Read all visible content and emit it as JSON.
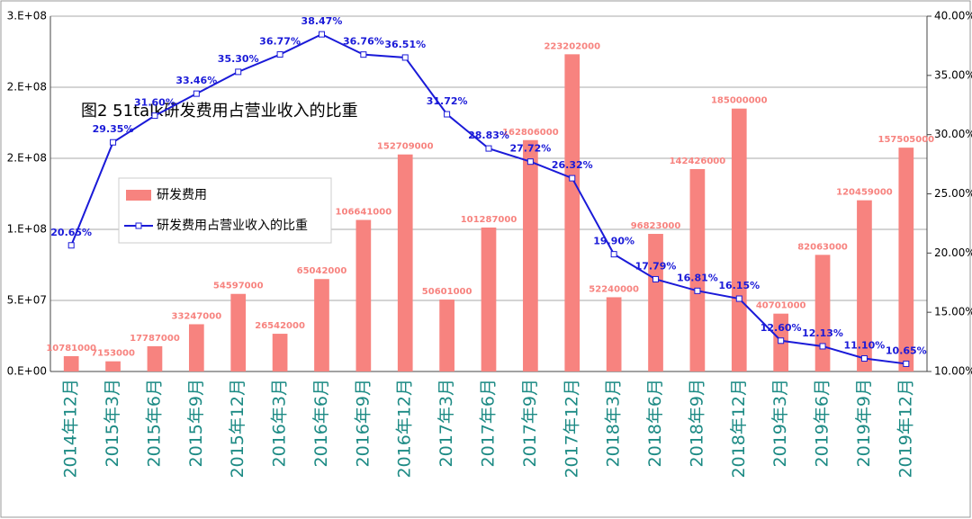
{
  "chart_data": {
    "type": "bar",
    "title": "图2  51talk研发费用占营业收入的比重",
    "categories": [
      "2014年12月",
      "2015年3月",
      "2015年6月",
      "2015年9月",
      "2015年12月",
      "2016年3月",
      "2016年6月",
      "2016年9月",
      "2016年12月",
      "2017年3月",
      "2017年6月",
      "2017年9月",
      "2017年12月",
      "2018年3月",
      "2018年6月",
      "2018年9月",
      "2018年12月",
      "2019年3月",
      "2019年6月",
      "2019年9月",
      "2019年12月"
    ],
    "series": [
      {
        "name": "研发费用",
        "type": "bar",
        "color": "#f7837f",
        "values": [
          10781000,
          7153000,
          17787000,
          33247000,
          54597000,
          26542000,
          65042000,
          106641000,
          152709000,
          50601000,
          101287000,
          162806000,
          223202000,
          52240000,
          96823000,
          142426000,
          185000000,
          40701000,
          82063000,
          120459000,
          157505000
        ]
      },
      {
        "name": "研发费用占营业收入的比重",
        "type": "line",
        "axis": "y2",
        "color": "#1a1ad8",
        "values": [
          20.65,
          29.35,
          31.6,
          33.46,
          35.3,
          36.77,
          38.47,
          36.76,
          36.51,
          31.72,
          28.83,
          27.72,
          26.32,
          19.9,
          17.79,
          16.81,
          16.15,
          12.6,
          12.13,
          11.1,
          10.65
        ],
        "value_labels": [
          "20.65%",
          "29.35%",
          "31.60%",
          "33.46%",
          "35.30%",
          "36.77%",
          "38.47%",
          "36.76%",
          "36.51%",
          "31.72%",
          "28.83%",
          "27.72%",
          "26.32%",
          "19.90%",
          "17.79%",
          "16.81%",
          "16.15%",
          "12.60%",
          "12.13%",
          "11.10%",
          "10.65%"
        ]
      }
    ],
    "ylim": [
      0,
      250000000
    ],
    "yticks": [
      {
        "value": 0,
        "label": "0.E+00"
      },
      {
        "value": 50000000,
        "label": "5.E+07"
      },
      {
        "value": 100000000,
        "label": "1.E+08"
      },
      {
        "value": 150000000,
        "label": "2.E+08"
      },
      {
        "value": 200000000,
        "label": "2.E+08"
      },
      {
        "value": 250000000,
        "label": "3.E+08"
      }
    ],
    "y2lim": [
      10,
      40
    ],
    "y2ticks": [
      {
        "value": 10,
        "label": "10.00%"
      },
      {
        "value": 15,
        "label": "15.00%"
      },
      {
        "value": 20,
        "label": "20.00%"
      },
      {
        "value": 25,
        "label": "25.00%"
      },
      {
        "value": 30,
        "label": "30.00%"
      },
      {
        "value": 35,
        "label": "35.00%"
      },
      {
        "value": 40,
        "label": "40.00%"
      }
    ],
    "grid": true
  }
}
